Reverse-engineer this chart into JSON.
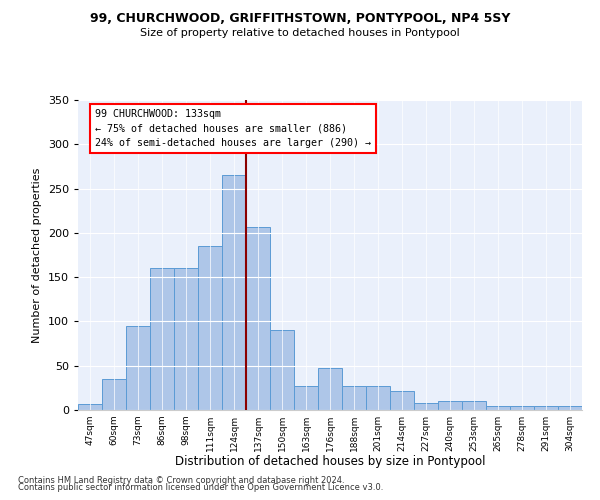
{
  "title1": "99, CHURCHWOOD, GRIFFITHSTOWN, PONTYPOOL, NP4 5SY",
  "title2": "Size of property relative to detached houses in Pontypool",
  "xlabel": "Distribution of detached houses by size in Pontypool",
  "ylabel": "Number of detached properties",
  "bar_labels": [
    "47sqm",
    "60sqm",
    "73sqm",
    "86sqm",
    "98sqm",
    "111sqm",
    "124sqm",
    "137sqm",
    "150sqm",
    "163sqm",
    "176sqm",
    "188sqm",
    "201sqm",
    "214sqm",
    "227sqm",
    "240sqm",
    "253sqm",
    "265sqm",
    "278sqm",
    "291sqm",
    "304sqm"
  ],
  "bar_values": [
    7,
    35,
    95,
    160,
    160,
    185,
    265,
    207,
    90,
    27,
    47,
    27,
    27,
    22,
    8,
    10,
    10,
    5,
    4,
    4,
    4
  ],
  "bar_color": "#aec6e8",
  "bar_edge_color": "#5b9bd5",
  "annotation_title": "99 CHURCHWOOD: 133sqm",
  "annotation_line1": "← 75% of detached houses are smaller (886)",
  "annotation_line2": "24% of semi-detached houses are larger (290) →",
  "ylim": [
    0,
    350
  ],
  "yticks": [
    0,
    50,
    100,
    150,
    200,
    250,
    300,
    350
  ],
  "background_color": "#eaf0fb",
  "footer1": "Contains HM Land Registry data © Crown copyright and database right 2024.",
  "footer2": "Contains public sector information licensed under the Open Government Licence v3.0."
}
